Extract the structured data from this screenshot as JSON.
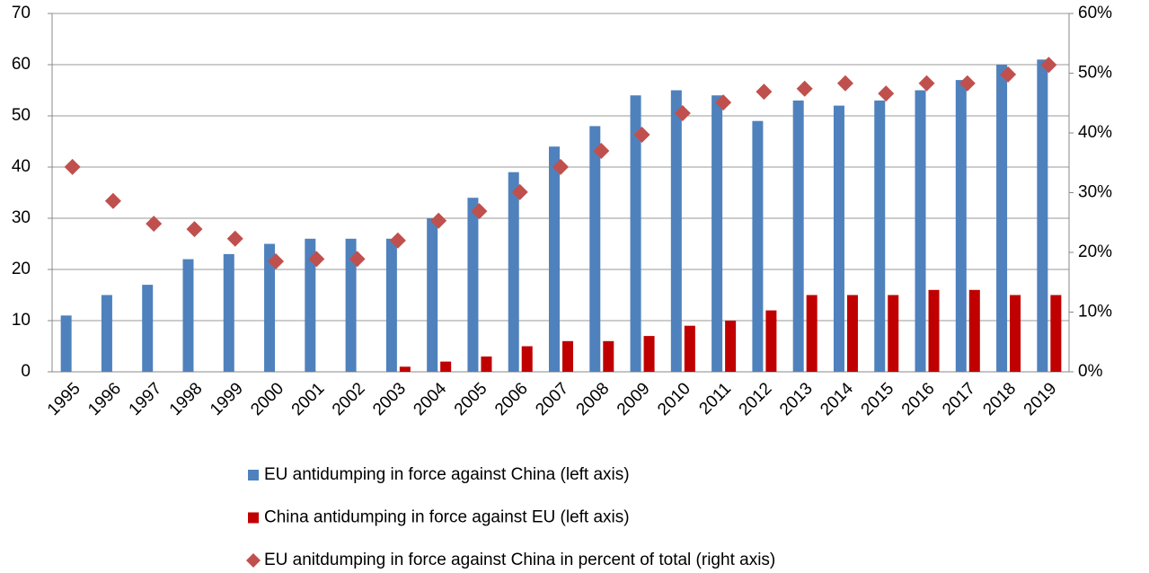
{
  "chart_data": {
    "type": "bar",
    "categories": [
      "1995",
      "1996",
      "1997",
      "1998",
      "1999",
      "2000",
      "2001",
      "2002",
      "2003",
      "2004",
      "2005",
      "2006",
      "2007",
      "2008",
      "2009",
      "2010",
      "2011",
      "2012",
      "2013",
      "2014",
      "2015",
      "2016",
      "2017",
      "2018",
      "2019"
    ],
    "series": [
      {
        "name": "EU antidumping in force against China (left axis)",
        "color": "#4f81bd",
        "type": "bar",
        "values": [
          11,
          15,
          17,
          22,
          23,
          25,
          26,
          26,
          26,
          30,
          34,
          39,
          44,
          48,
          54,
          55,
          54,
          49,
          53,
          52,
          53,
          55,
          57,
          60,
          61
        ]
      },
      {
        "name": "China antidumping in force against EU (left axis)",
        "color": "#c00000",
        "type": "bar",
        "values": [
          0,
          0,
          0,
          0,
          0,
          0,
          0,
          0,
          1,
          2,
          3,
          5,
          6,
          6,
          7,
          9,
          10,
          12,
          15,
          15,
          15,
          16,
          16,
          15,
          15
        ]
      },
      {
        "name": "EU anitdumping in force against China in percent of total (right axis)",
        "color": "#c0504d",
        "type": "scatter",
        "axis": "y2",
        "values": [
          34.3,
          28.6,
          24.8,
          23.9,
          22.3,
          18.5,
          18.9,
          18.9,
          22.0,
          25.3,
          26.9,
          30.1,
          34.3,
          37.0,
          39.7,
          43.3,
          45.1,
          46.9,
          47.4,
          48.3,
          46.6,
          48.3,
          48.3,
          49.8,
          51.4
        ]
      }
    ],
    "ylim": [
      0,
      70
    ],
    "yticks": [
      0,
      10,
      20,
      30,
      40,
      50,
      60,
      70
    ],
    "y2lim": [
      0,
      60
    ],
    "y2ticks": [
      {
        "value": 0,
        "label": "0%"
      },
      {
        "value": 10,
        "label": "10%"
      },
      {
        "value": 20,
        "label": "20%"
      },
      {
        "value": 30,
        "label": "30%"
      },
      {
        "value": 40,
        "label": "40%"
      },
      {
        "value": 50,
        "label": "50%"
      },
      {
        "value": 60,
        "label": "60%"
      }
    ],
    "grid": true,
    "legend": "bottom"
  }
}
